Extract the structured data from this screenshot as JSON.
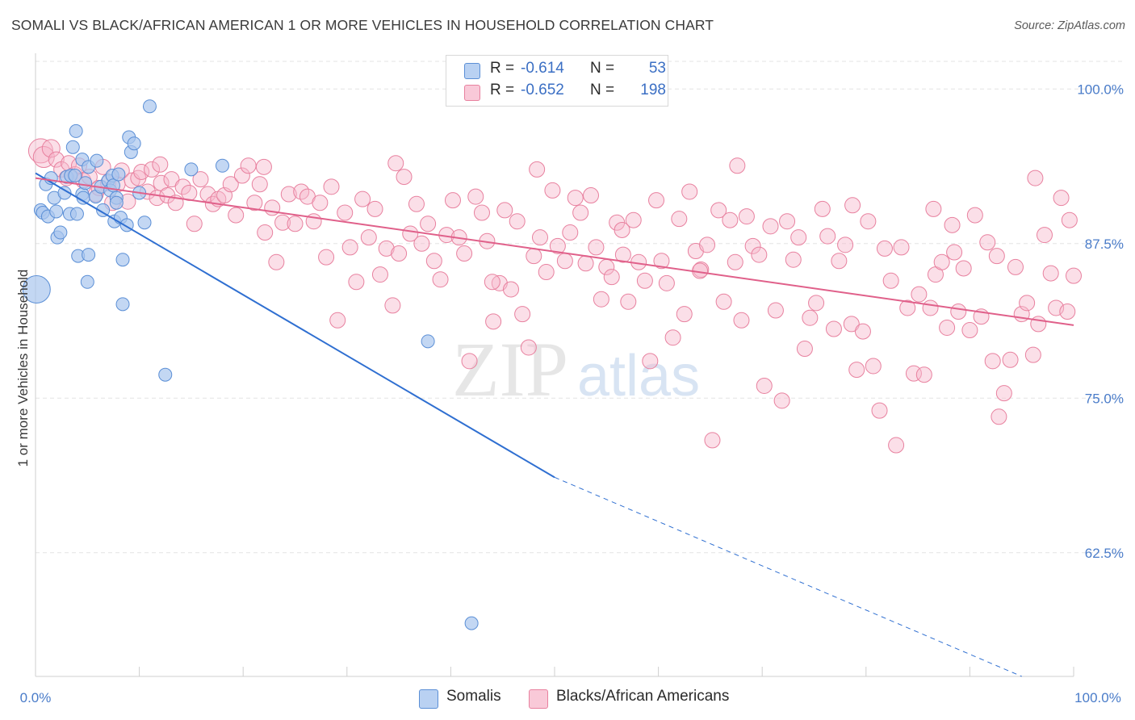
{
  "title": "SOMALI VS BLACK/AFRICAN AMERICAN 1 OR MORE VEHICLES IN HOUSEHOLD CORRELATION CHART",
  "source": "Source: ZipAtlas.com",
  "watermark": {
    "zip": "ZIP",
    "atlas": "atlas"
  },
  "legend": {
    "r_label": "R =",
    "n_label": "N =",
    "rows": [
      {
        "r": "-0.614",
        "n": "53"
      },
      {
        "r": "-0.652",
        "n": "198"
      }
    ]
  },
  "bottom_legend": [
    "Somalis",
    "Blacks/African Americans"
  ],
  "colors": {
    "somali_fill": "#a9c6ee",
    "somali_stroke": "#5b8fd6",
    "somali_line": "#2f6fd1",
    "black_fill": "#f6b8cb",
    "black_stroke": "#e8819f",
    "black_line": "#e0608a",
    "grid": "#e3e3e3",
    "axis_text": "#4a7cc9"
  },
  "chart_data": {
    "type": "scatter",
    "xlabel": "",
    "ylabel": "1 or more Vehicles in Household",
    "xlim": [
      0,
      100
    ],
    "ylim": [
      52.5,
      102.5
    ],
    "x_ticks": [
      "0.0%",
      "100.0%"
    ],
    "y_ticks": [
      {
        "value": 100,
        "label": "100.0%"
      },
      {
        "value": 87.5,
        "label": "87.5%"
      },
      {
        "value": 75,
        "label": "75.0%"
      },
      {
        "value": 62.5,
        "label": "62.5%"
      }
    ],
    "grid": true,
    "series": [
      {
        "name": "Somalis",
        "trend": {
          "x0": 0,
          "y0": 93.2,
          "x1": 50,
          "y1": 68.6,
          "dashed_to_x": 95,
          "dashed_to_y": 52.5
        },
        "points": [
          [
            0.1,
            83.8
          ],
          [
            0.5,
            90.2
          ],
          [
            0.7,
            90.0
          ],
          [
            1.0,
            92.3
          ],
          [
            1.2,
            89.7
          ],
          [
            1.5,
            92.8
          ],
          [
            1.8,
            91.2
          ],
          [
            2.1,
            88.0
          ],
          [
            2.0,
            90.1
          ],
          [
            2.4,
            88.4
          ],
          [
            2.8,
            91.6
          ],
          [
            3.0,
            92.9
          ],
          [
            3.3,
            89.9
          ],
          [
            3.4,
            93.0
          ],
          [
            3.6,
            95.3
          ],
          [
            3.8,
            93.0
          ],
          [
            3.9,
            96.6
          ],
          [
            4.0,
            89.9
          ],
          [
            4.1,
            86.5
          ],
          [
            4.5,
            94.3
          ],
          [
            4.5,
            91.5
          ],
          [
            4.6,
            91.2
          ],
          [
            4.8,
            92.4
          ],
          [
            5.0,
            84.4
          ],
          [
            5.1,
            93.7
          ],
          [
            5.1,
            86.6
          ],
          [
            5.8,
            91.3
          ],
          [
            5.9,
            94.2
          ],
          [
            6.3,
            92.1
          ],
          [
            6.5,
            90.2
          ],
          [
            7.0,
            92.6
          ],
          [
            7.2,
            91.8
          ],
          [
            7.4,
            93.0
          ],
          [
            7.5,
            92.2
          ],
          [
            7.6,
            89.3
          ],
          [
            7.8,
            91.2
          ],
          [
            7.8,
            90.8
          ],
          [
            8.0,
            93.1
          ],
          [
            8.2,
            89.6
          ],
          [
            8.4,
            82.6
          ],
          [
            8.4,
            86.2
          ],
          [
            8.8,
            89.0
          ],
          [
            9.0,
            96.1
          ],
          [
            9.2,
            94.9
          ],
          [
            9.5,
            95.6
          ],
          [
            10.0,
            91.6
          ],
          [
            10.5,
            89.2
          ],
          [
            11.0,
            98.6
          ],
          [
            12.5,
            76.9
          ],
          [
            15.0,
            93.5
          ],
          [
            18.0,
            93.8
          ],
          [
            37.8,
            79.6
          ],
          [
            42.0,
            56.8
          ]
        ],
        "sizes": {
          "0": 34
        }
      },
      {
        "name": "Blacks/African Americans",
        "trend": {
          "x0": 0,
          "y0": 92.8,
          "x1": 100,
          "y1": 80.9
        },
        "points": [
          [
            0.5,
            95.0
          ],
          [
            0.8,
            94.5
          ],
          [
            1.5,
            95.2
          ],
          [
            2.0,
            94.3
          ],
          [
            2.5,
            93.5
          ],
          [
            3.0,
            92.8
          ],
          [
            3.2,
            94.0
          ],
          [
            3.8,
            93.1
          ],
          [
            4.2,
            93.8
          ],
          [
            4.6,
            92.6
          ],
          [
            5.2,
            92.9
          ],
          [
            5.8,
            91.5
          ],
          [
            6.1,
            92.0
          ],
          [
            6.5,
            93.7
          ],
          [
            7.0,
            92.4
          ],
          [
            7.4,
            90.8
          ],
          [
            7.9,
            92.3
          ],
          [
            8.3,
            93.4
          ],
          [
            8.9,
            90.9
          ],
          [
            9.3,
            92.6
          ],
          [
            9.9,
            92.8
          ],
          [
            10.2,
            93.3
          ],
          [
            10.8,
            91.7
          ],
          [
            11.2,
            93.5
          ],
          [
            11.7,
            91.2
          ],
          [
            12.1,
            92.4
          ],
          [
            12.7,
            91.4
          ],
          [
            13.1,
            92.7
          ],
          [
            13.5,
            90.8
          ],
          [
            14.2,
            92.1
          ],
          [
            14.8,
            91.6
          ],
          [
            15.3,
            89.1
          ],
          [
            15.9,
            92.7
          ],
          [
            16.6,
            91.5
          ],
          [
            17.1,
            90.7
          ],
          [
            17.6,
            91.1
          ],
          [
            18.2,
            91.4
          ],
          [
            18.8,
            92.3
          ],
          [
            19.3,
            89.8
          ],
          [
            19.9,
            93.0
          ],
          [
            20.5,
            93.8
          ],
          [
            21.1,
            90.8
          ],
          [
            21.6,
            92.3
          ],
          [
            22.1,
            88.4
          ],
          [
            22.8,
            90.4
          ],
          [
            23.2,
            86.0
          ],
          [
            23.8,
            89.2
          ],
          [
            24.4,
            91.5
          ],
          [
            25.0,
            89.1
          ],
          [
            25.6,
            91.7
          ],
          [
            26.2,
            91.3
          ],
          [
            26.8,
            89.3
          ],
          [
            27.4,
            90.8
          ],
          [
            28.0,
            86.4
          ],
          [
            28.5,
            92.1
          ],
          [
            29.1,
            81.3
          ],
          [
            29.8,
            90.0
          ],
          [
            30.3,
            87.2
          ],
          [
            30.9,
            84.4
          ],
          [
            31.5,
            91.1
          ],
          [
            32.1,
            88.0
          ],
          [
            32.7,
            90.3
          ],
          [
            33.2,
            85.0
          ],
          [
            33.8,
            87.1
          ],
          [
            34.4,
            82.5
          ],
          [
            35.0,
            86.7
          ],
          [
            35.5,
            92.9
          ],
          [
            36.1,
            88.3
          ],
          [
            36.7,
            90.7
          ],
          [
            37.2,
            87.5
          ],
          [
            37.8,
            89.1
          ],
          [
            38.4,
            86.1
          ],
          [
            39.0,
            84.6
          ],
          [
            39.6,
            88.2
          ],
          [
            40.2,
            91.0
          ],
          [
            40.8,
            88.0
          ],
          [
            41.3,
            86.7
          ],
          [
            41.8,
            78.0
          ],
          [
            42.4,
            91.3
          ],
          [
            43.0,
            90.0
          ],
          [
            43.5,
            87.7
          ],
          [
            44.1,
            81.2
          ],
          [
            44.7,
            84.3
          ],
          [
            45.2,
            90.2
          ],
          [
            45.8,
            83.8
          ],
          [
            46.4,
            89.3
          ],
          [
            46.9,
            81.8
          ],
          [
            47.5,
            79.1
          ],
          [
            48.0,
            86.5
          ],
          [
            48.6,
            88.0
          ],
          [
            49.2,
            85.2
          ],
          [
            49.8,
            91.8
          ],
          [
            50.3,
            87.3
          ],
          [
            51.0,
            86.1
          ],
          [
            51.5,
            88.4
          ],
          [
            52.0,
            91.2
          ],
          [
            52.5,
            90.0
          ],
          [
            53.0,
            85.9
          ],
          [
            53.5,
            91.4
          ],
          [
            54.0,
            87.2
          ],
          [
            54.5,
            83.0
          ],
          [
            55.0,
            85.6
          ],
          [
            55.5,
            84.8
          ],
          [
            56.0,
            89.2
          ],
          [
            56.6,
            86.6
          ],
          [
            57.1,
            82.8
          ],
          [
            57.6,
            89.4
          ],
          [
            58.1,
            86.0
          ],
          [
            58.7,
            84.5
          ],
          [
            59.2,
            78.0
          ],
          [
            59.8,
            91.0
          ],
          [
            60.3,
            86.1
          ],
          [
            60.8,
            84.3
          ],
          [
            61.4,
            79.9
          ],
          [
            62.0,
            89.5
          ],
          [
            62.5,
            81.8
          ],
          [
            63.0,
            91.7
          ],
          [
            63.6,
            86.9
          ],
          [
            64.1,
            85.4
          ],
          [
            64.7,
            87.4
          ],
          [
            65.2,
            71.6
          ],
          [
            65.8,
            90.2
          ],
          [
            66.3,
            82.8
          ],
          [
            66.9,
            89.4
          ],
          [
            67.4,
            86.0
          ],
          [
            68.0,
            81.3
          ],
          [
            68.5,
            89.7
          ],
          [
            69.1,
            87.3
          ],
          [
            69.7,
            86.6
          ],
          [
            70.2,
            76.0
          ],
          [
            70.8,
            88.9
          ],
          [
            71.3,
            82.1
          ],
          [
            71.9,
            74.8
          ],
          [
            72.4,
            89.3
          ],
          [
            73.0,
            86.2
          ],
          [
            73.5,
            88.0
          ],
          [
            74.1,
            79.0
          ],
          [
            74.6,
            81.5
          ],
          [
            75.2,
            82.7
          ],
          [
            75.8,
            90.3
          ],
          [
            76.3,
            88.1
          ],
          [
            76.9,
            80.6
          ],
          [
            77.4,
            86.1
          ],
          [
            78.0,
            87.4
          ],
          [
            78.6,
            81.0
          ],
          [
            79.1,
            77.3
          ],
          [
            79.7,
            80.4
          ],
          [
            80.2,
            89.3
          ],
          [
            80.7,
            77.6
          ],
          [
            81.3,
            74.0
          ],
          [
            81.8,
            87.1
          ],
          [
            82.4,
            84.5
          ],
          [
            82.9,
            71.2
          ],
          [
            83.4,
            87.2
          ],
          [
            84.0,
            82.3
          ],
          [
            84.6,
            77.0
          ],
          [
            85.1,
            83.4
          ],
          [
            85.6,
            76.9
          ],
          [
            86.2,
            82.3
          ],
          [
            86.7,
            85.0
          ],
          [
            87.3,
            86.0
          ],
          [
            87.8,
            80.7
          ],
          [
            88.3,
            89.0
          ],
          [
            88.9,
            82.0
          ],
          [
            89.4,
            85.5
          ],
          [
            90.0,
            80.5
          ],
          [
            90.5,
            89.8
          ],
          [
            91.1,
            81.6
          ],
          [
            91.7,
            87.6
          ],
          [
            92.2,
            78.0
          ],
          [
            92.8,
            73.5
          ],
          [
            93.3,
            75.4
          ],
          [
            93.9,
            78.1
          ],
          [
            94.4,
            85.6
          ],
          [
            95.0,
            81.8
          ],
          [
            95.5,
            82.7
          ],
          [
            96.1,
            78.5
          ],
          [
            96.6,
            81.0
          ],
          [
            97.2,
            88.2
          ],
          [
            97.8,
            85.1
          ],
          [
            98.3,
            82.3
          ],
          [
            98.8,
            91.2
          ],
          [
            99.4,
            82.0
          ],
          [
            100.0,
            84.9
          ],
          [
            12.0,
            93.9
          ],
          [
            22.0,
            93.7
          ],
          [
            34.7,
            94.0
          ],
          [
            48.3,
            93.5
          ],
          [
            56.5,
            88.6
          ],
          [
            67.6,
            93.8
          ],
          [
            78.7,
            90.6
          ],
          [
            86.5,
            90.3
          ],
          [
            92.6,
            86.5
          ],
          [
            96.3,
            92.8
          ],
          [
            99.6,
            89.4
          ],
          [
            44.0,
            84.4
          ],
          [
            64.0,
            85.3
          ],
          [
            88.5,
            86.8
          ]
        ],
        "sizes": {
          "0": 30,
          "1": 26,
          "2": 22
        }
      }
    ]
  }
}
